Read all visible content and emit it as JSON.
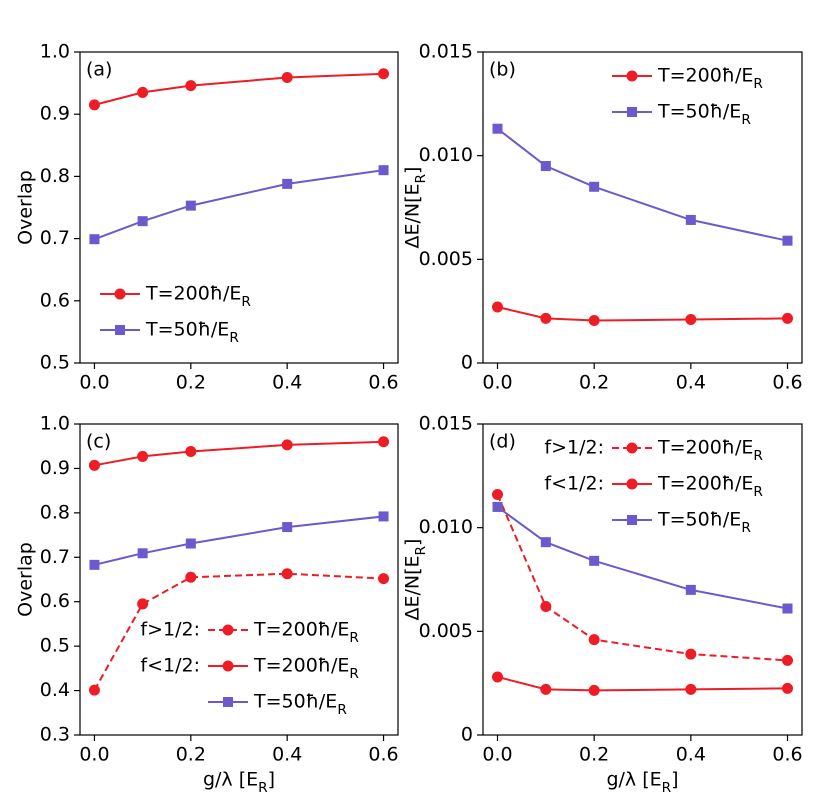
{
  "chart_data": [
    {
      "type": "line",
      "label": "(a)",
      "ylabel": "Overlap",
      "x": [
        0,
        0.1,
        0.2,
        0.4,
        0.6
      ],
      "xlim": [
        -0.03,
        0.63
      ],
      "xticks": [
        {
          "value": 0,
          "label": "0.0"
        },
        0.2,
        0.4,
        0.6
      ],
      "ylim": [
        0.5,
        1.0
      ],
      "yticks": [
        0.5,
        0.6,
        0.7,
        0.8,
        0.9,
        {
          "value": 1.0,
          "label": "1.0"
        }
      ],
      "legend": "lower left",
      "series": [
        {
          "name": "T=200ħ/E_R",
          "color": "#ee1c25",
          "marker": "circle",
          "dashed": false,
          "values": [
            0.915,
            0.935,
            0.946,
            0.959,
            0.965
          ]
        },
        {
          "name": "T=50ħ/E_R",
          "color": "#6a5acd",
          "marker": "square",
          "dashed": false,
          "values": [
            0.699,
            0.728,
            0.753,
            0.788,
            0.81
          ]
        }
      ]
    },
    {
      "type": "line",
      "label": "(b)",
      "ylabel": "ΔE/N[E_R]",
      "x": [
        0,
        0.1,
        0.2,
        0.4,
        0.6
      ],
      "xlim": [
        -0.03,
        0.63
      ],
      "xticks": [
        {
          "value": 0,
          "label": "0.0"
        },
        0.2,
        0.4,
        0.6
      ],
      "ylim": [
        0,
        0.015
      ],
      "yticks": [
        0,
        0.005,
        {
          "value": 0.01,
          "label": "0.010"
        },
        0.015
      ],
      "legend": "upper right",
      "series": [
        {
          "name": "T=200ħ/E_R",
          "color": "#ee1c25",
          "marker": "circle",
          "dashed": false,
          "values": [
            0.0027,
            0.00215,
            0.00205,
            0.0021,
            0.00215
          ]
        },
        {
          "name": "T=50ħ/E_R",
          "color": "#6a5acd",
          "marker": "square",
          "dashed": false,
          "values": [
            0.0113,
            0.0095,
            0.0085,
            0.0069,
            0.0059
          ]
        }
      ]
    },
    {
      "type": "line",
      "label": "(c)",
      "ylabel": "Overlap",
      "xlabel": "g/λ [E_R]",
      "x": [
        0,
        0.1,
        0.2,
        0.4,
        0.6
      ],
      "xlim": [
        -0.03,
        0.63
      ],
      "xticks": [
        {
          "value": 0,
          "label": "0.0"
        },
        0.2,
        0.4,
        0.6
      ],
      "ylim": [
        0.3,
        1.0
      ],
      "yticks": [
        0.3,
        0.4,
        0.5,
        0.6,
        0.7,
        0.8,
        0.9,
        {
          "value": 1.0,
          "label": "1.0"
        }
      ],
      "legend": "lower right",
      "series": [
        {
          "name": "T=200ħ/E_R",
          "group": "f>1/2:",
          "color": "#ee1c25",
          "marker": "circle",
          "dashed": true,
          "values": [
            0.401,
            0.595,
            0.655,
            0.663,
            0.652
          ]
        },
        {
          "name": "T=200ħ/E_R",
          "group": "f<1/2:",
          "color": "#ee1c25",
          "marker": "circle",
          "dashed": false,
          "values": [
            0.907,
            0.927,
            0.938,
            0.953,
            0.96
          ]
        },
        {
          "name": "T=50ħ/E_R",
          "color": "#6a5acd",
          "marker": "square",
          "dashed": false,
          "values": [
            0.683,
            0.709,
            0.731,
            0.768,
            0.792
          ]
        }
      ]
    },
    {
      "type": "line",
      "label": "(d)",
      "ylabel": "ΔE/N[E_R]",
      "xlabel": "g/λ [E_R]",
      "x": [
        0,
        0.1,
        0.2,
        0.4,
        0.6
      ],
      "xlim": [
        -0.03,
        0.63
      ],
      "xticks": [
        {
          "value": 0,
          "label": "0.0"
        },
        0.2,
        0.4,
        0.6
      ],
      "ylim": [
        0,
        0.015
      ],
      "yticks": [
        0,
        0.005,
        {
          "value": 0.01,
          "label": "0.010"
        },
        0.015
      ],
      "legend": "upper right",
      "series": [
        {
          "name": "T=200ħ/E_R",
          "group": "f>1/2:",
          "color": "#ee1c25",
          "marker": "circle",
          "dashed": true,
          "values": [
            0.0116,
            0.0062,
            0.0046,
            0.0039,
            0.0036
          ]
        },
        {
          "name": "T=200ħ/E_R",
          "group": "f<1/2:",
          "color": "#ee1c25",
          "marker": "circle",
          "dashed": false,
          "values": [
            0.0028,
            0.0022,
            0.00215,
            0.0022,
            0.00225
          ]
        },
        {
          "name": "T=50ħ/E_R",
          "color": "#6a5acd",
          "marker": "square",
          "dashed": false,
          "values": [
            0.011,
            0.0093,
            0.0084,
            0.007,
            0.0061
          ]
        }
      ]
    }
  ]
}
